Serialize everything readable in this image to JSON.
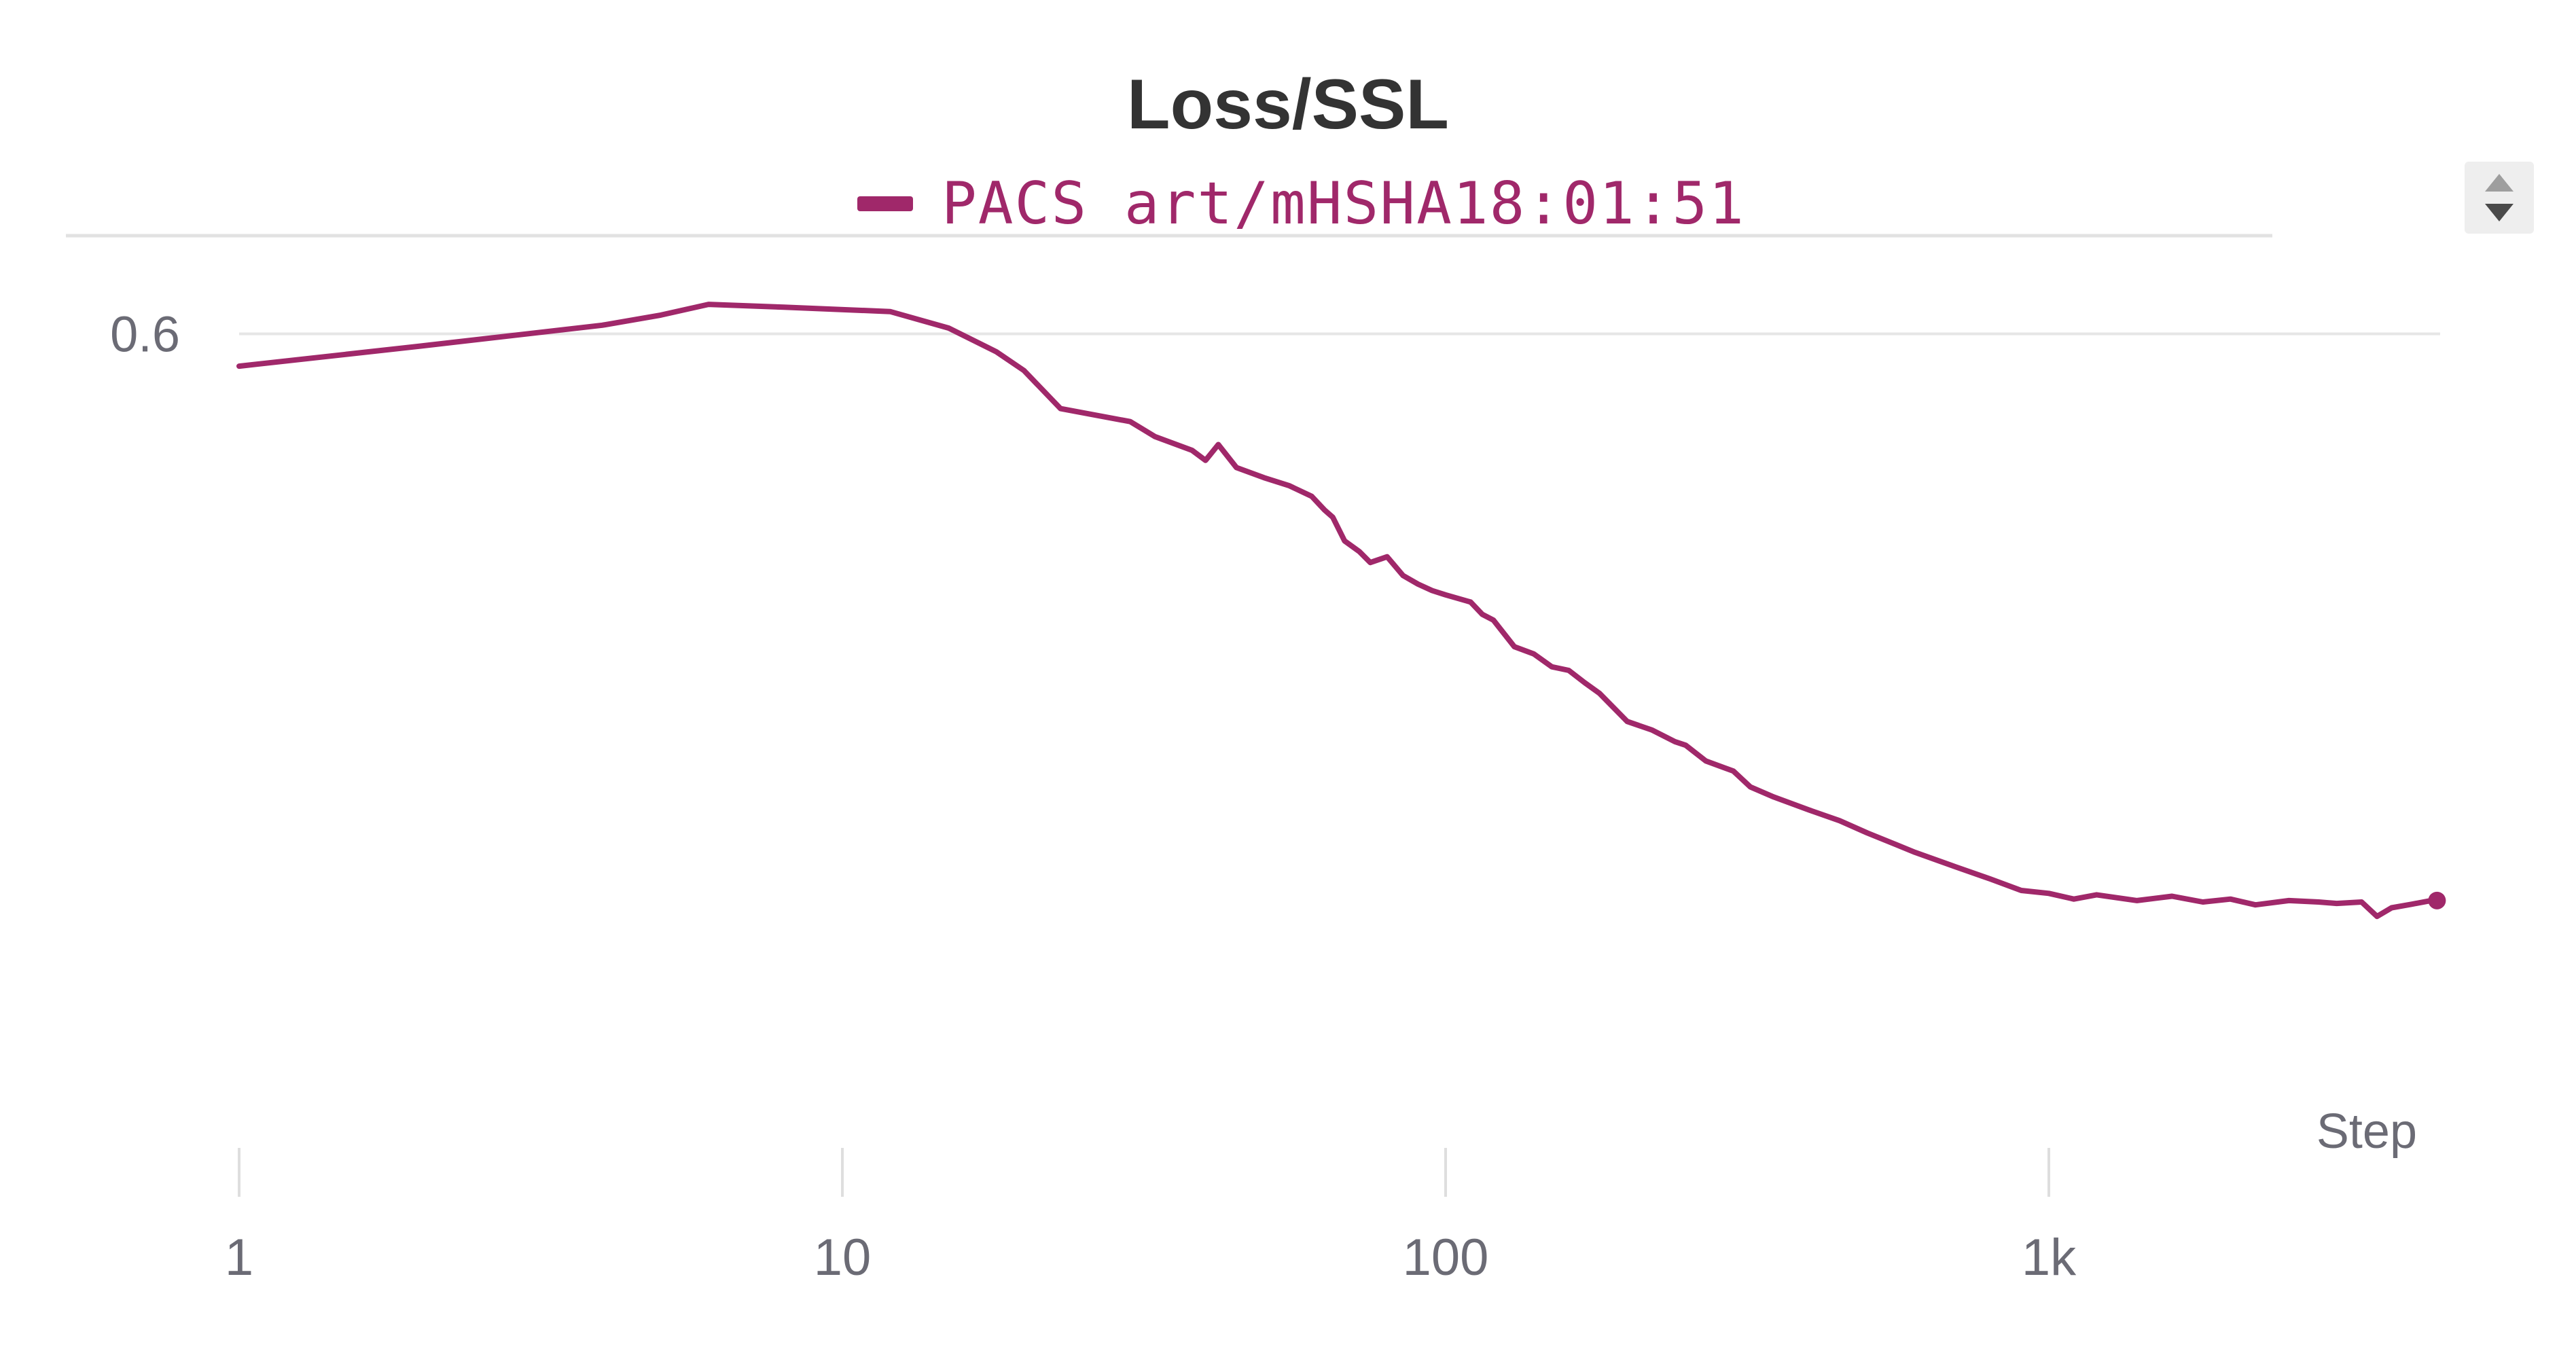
{
  "chart_data": {
    "type": "line",
    "title": "Loss/SSL",
    "xlabel": "Step",
    "ylabel": "",
    "x_scale": "log",
    "xlim": [
      1,
      4400
    ],
    "ylim": [
      0.487,
      0.611
    ],
    "x_ticks": [
      1,
      10,
      100,
      1000
    ],
    "x_tick_labels": [
      "1",
      "10",
      "100",
      "1k"
    ],
    "y_ticks": [
      0.6
    ],
    "y_tick_labels": [
      "0.6"
    ],
    "grid": true,
    "legend_position": "top-center",
    "series": [
      {
        "name": "PACS_art/mHSHA18:01:51",
        "color": "#a0286a",
        "x": [
          1,
          2,
          4,
          5,
          6,
          8,
          12,
          15,
          18,
          20,
          23,
          30,
          33,
          38,
          40,
          42,
          45,
          50,
          55,
          60,
          63,
          65,
          68,
          72,
          75,
          80,
          85,
          90,
          95,
          100,
          110,
          115,
          120,
          130,
          140,
          150,
          160,
          170,
          180,
          190,
          200,
          220,
          240,
          250,
          270,
          300,
          320,
          350,
          400,
          450,
          500,
          550,
          600,
          700,
          800,
          900,
          1000,
          1100,
          1200,
          1400,
          1600,
          1800,
          2000,
          2200,
          2500,
          2800,
          3000,
          3300,
          3500,
          3700,
          4000,
          4300,
          4400
        ],
        "y": [
          0.5955,
          0.5983,
          0.6012,
          0.6026,
          0.6041,
          0.6037,
          0.6031,
          0.6008,
          0.5975,
          0.5949,
          0.5896,
          0.5878,
          0.5857,
          0.5838,
          0.5824,
          0.5846,
          0.5814,
          0.58,
          0.5789,
          0.5774,
          0.5755,
          0.5745,
          0.5712,
          0.5697,
          0.5682,
          0.569,
          0.5664,
          0.5652,
          0.5643,
          0.5637,
          0.5627,
          0.561,
          0.5602,
          0.5565,
          0.5555,
          0.5537,
          0.5532,
          0.5515,
          0.55,
          0.548,
          0.5461,
          0.5449,
          0.5433,
          0.5428,
          0.5406,
          0.5392,
          0.537,
          0.5356,
          0.5338,
          0.5323,
          0.5306,
          0.5292,
          0.5279,
          0.5259,
          0.5242,
          0.5226,
          0.5222,
          0.5214,
          0.522,
          0.5212,
          0.5218,
          0.521,
          0.5214,
          0.5206,
          0.5212,
          0.521,
          0.5208,
          0.521,
          0.519,
          0.5202,
          0.5207,
          0.5212,
          0.5212
        ]
      }
    ]
  }
}
